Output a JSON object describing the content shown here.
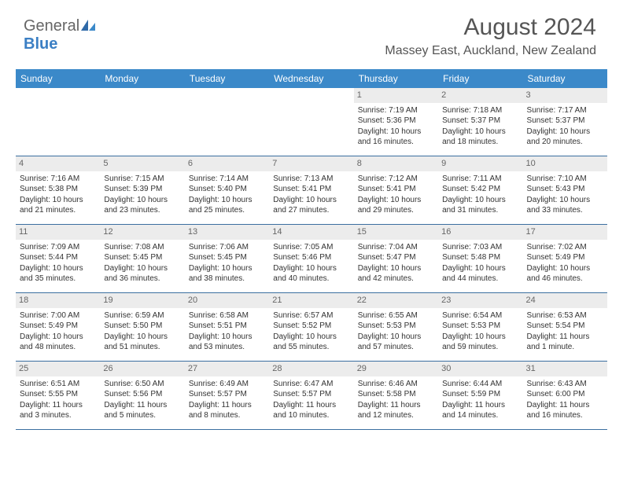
{
  "brand": {
    "part1": "General",
    "part2": "Blue"
  },
  "title": "August 2024",
  "subtitle": "Massey East, Auckland, New Zealand",
  "colors": {
    "headerBg": "#3b89c9",
    "headerText": "#ffffff",
    "dayNumBg": "#ececec",
    "border": "#3b6fa0"
  },
  "dayNames": [
    "Sunday",
    "Monday",
    "Tuesday",
    "Wednesday",
    "Thursday",
    "Friday",
    "Saturday"
  ],
  "weeks": [
    [
      null,
      null,
      null,
      null,
      {
        "n": "1",
        "sr": "Sunrise: 7:19 AM",
        "ss": "Sunset: 5:36 PM",
        "d1": "Daylight: 10 hours",
        "d2": "and 16 minutes."
      },
      {
        "n": "2",
        "sr": "Sunrise: 7:18 AM",
        "ss": "Sunset: 5:37 PM",
        "d1": "Daylight: 10 hours",
        "d2": "and 18 minutes."
      },
      {
        "n": "3",
        "sr": "Sunrise: 7:17 AM",
        "ss": "Sunset: 5:37 PM",
        "d1": "Daylight: 10 hours",
        "d2": "and 20 minutes."
      }
    ],
    [
      {
        "n": "4",
        "sr": "Sunrise: 7:16 AM",
        "ss": "Sunset: 5:38 PM",
        "d1": "Daylight: 10 hours",
        "d2": "and 21 minutes."
      },
      {
        "n": "5",
        "sr": "Sunrise: 7:15 AM",
        "ss": "Sunset: 5:39 PM",
        "d1": "Daylight: 10 hours",
        "d2": "and 23 minutes."
      },
      {
        "n": "6",
        "sr": "Sunrise: 7:14 AM",
        "ss": "Sunset: 5:40 PM",
        "d1": "Daylight: 10 hours",
        "d2": "and 25 minutes."
      },
      {
        "n": "7",
        "sr": "Sunrise: 7:13 AM",
        "ss": "Sunset: 5:41 PM",
        "d1": "Daylight: 10 hours",
        "d2": "and 27 minutes."
      },
      {
        "n": "8",
        "sr": "Sunrise: 7:12 AM",
        "ss": "Sunset: 5:41 PM",
        "d1": "Daylight: 10 hours",
        "d2": "and 29 minutes."
      },
      {
        "n": "9",
        "sr": "Sunrise: 7:11 AM",
        "ss": "Sunset: 5:42 PM",
        "d1": "Daylight: 10 hours",
        "d2": "and 31 minutes."
      },
      {
        "n": "10",
        "sr": "Sunrise: 7:10 AM",
        "ss": "Sunset: 5:43 PM",
        "d1": "Daylight: 10 hours",
        "d2": "and 33 minutes."
      }
    ],
    [
      {
        "n": "11",
        "sr": "Sunrise: 7:09 AM",
        "ss": "Sunset: 5:44 PM",
        "d1": "Daylight: 10 hours",
        "d2": "and 35 minutes."
      },
      {
        "n": "12",
        "sr": "Sunrise: 7:08 AM",
        "ss": "Sunset: 5:45 PM",
        "d1": "Daylight: 10 hours",
        "d2": "and 36 minutes."
      },
      {
        "n": "13",
        "sr": "Sunrise: 7:06 AM",
        "ss": "Sunset: 5:45 PM",
        "d1": "Daylight: 10 hours",
        "d2": "and 38 minutes."
      },
      {
        "n": "14",
        "sr": "Sunrise: 7:05 AM",
        "ss": "Sunset: 5:46 PM",
        "d1": "Daylight: 10 hours",
        "d2": "and 40 minutes."
      },
      {
        "n": "15",
        "sr": "Sunrise: 7:04 AM",
        "ss": "Sunset: 5:47 PM",
        "d1": "Daylight: 10 hours",
        "d2": "and 42 minutes."
      },
      {
        "n": "16",
        "sr": "Sunrise: 7:03 AM",
        "ss": "Sunset: 5:48 PM",
        "d1": "Daylight: 10 hours",
        "d2": "and 44 minutes."
      },
      {
        "n": "17",
        "sr": "Sunrise: 7:02 AM",
        "ss": "Sunset: 5:49 PM",
        "d1": "Daylight: 10 hours",
        "d2": "and 46 minutes."
      }
    ],
    [
      {
        "n": "18",
        "sr": "Sunrise: 7:00 AM",
        "ss": "Sunset: 5:49 PM",
        "d1": "Daylight: 10 hours",
        "d2": "and 48 minutes."
      },
      {
        "n": "19",
        "sr": "Sunrise: 6:59 AM",
        "ss": "Sunset: 5:50 PM",
        "d1": "Daylight: 10 hours",
        "d2": "and 51 minutes."
      },
      {
        "n": "20",
        "sr": "Sunrise: 6:58 AM",
        "ss": "Sunset: 5:51 PM",
        "d1": "Daylight: 10 hours",
        "d2": "and 53 minutes."
      },
      {
        "n": "21",
        "sr": "Sunrise: 6:57 AM",
        "ss": "Sunset: 5:52 PM",
        "d1": "Daylight: 10 hours",
        "d2": "and 55 minutes."
      },
      {
        "n": "22",
        "sr": "Sunrise: 6:55 AM",
        "ss": "Sunset: 5:53 PM",
        "d1": "Daylight: 10 hours",
        "d2": "and 57 minutes."
      },
      {
        "n": "23",
        "sr": "Sunrise: 6:54 AM",
        "ss": "Sunset: 5:53 PM",
        "d1": "Daylight: 10 hours",
        "d2": "and 59 minutes."
      },
      {
        "n": "24",
        "sr": "Sunrise: 6:53 AM",
        "ss": "Sunset: 5:54 PM",
        "d1": "Daylight: 11 hours",
        "d2": "and 1 minute."
      }
    ],
    [
      {
        "n": "25",
        "sr": "Sunrise: 6:51 AM",
        "ss": "Sunset: 5:55 PM",
        "d1": "Daylight: 11 hours",
        "d2": "and 3 minutes."
      },
      {
        "n": "26",
        "sr": "Sunrise: 6:50 AM",
        "ss": "Sunset: 5:56 PM",
        "d1": "Daylight: 11 hours",
        "d2": "and 5 minutes."
      },
      {
        "n": "27",
        "sr": "Sunrise: 6:49 AM",
        "ss": "Sunset: 5:57 PM",
        "d1": "Daylight: 11 hours",
        "d2": "and 8 minutes."
      },
      {
        "n": "28",
        "sr": "Sunrise: 6:47 AM",
        "ss": "Sunset: 5:57 PM",
        "d1": "Daylight: 11 hours",
        "d2": "and 10 minutes."
      },
      {
        "n": "29",
        "sr": "Sunrise: 6:46 AM",
        "ss": "Sunset: 5:58 PM",
        "d1": "Daylight: 11 hours",
        "d2": "and 12 minutes."
      },
      {
        "n": "30",
        "sr": "Sunrise: 6:44 AM",
        "ss": "Sunset: 5:59 PM",
        "d1": "Daylight: 11 hours",
        "d2": "and 14 minutes."
      },
      {
        "n": "31",
        "sr": "Sunrise: 6:43 AM",
        "ss": "Sunset: 6:00 PM",
        "d1": "Daylight: 11 hours",
        "d2": "and 16 minutes."
      }
    ]
  ]
}
